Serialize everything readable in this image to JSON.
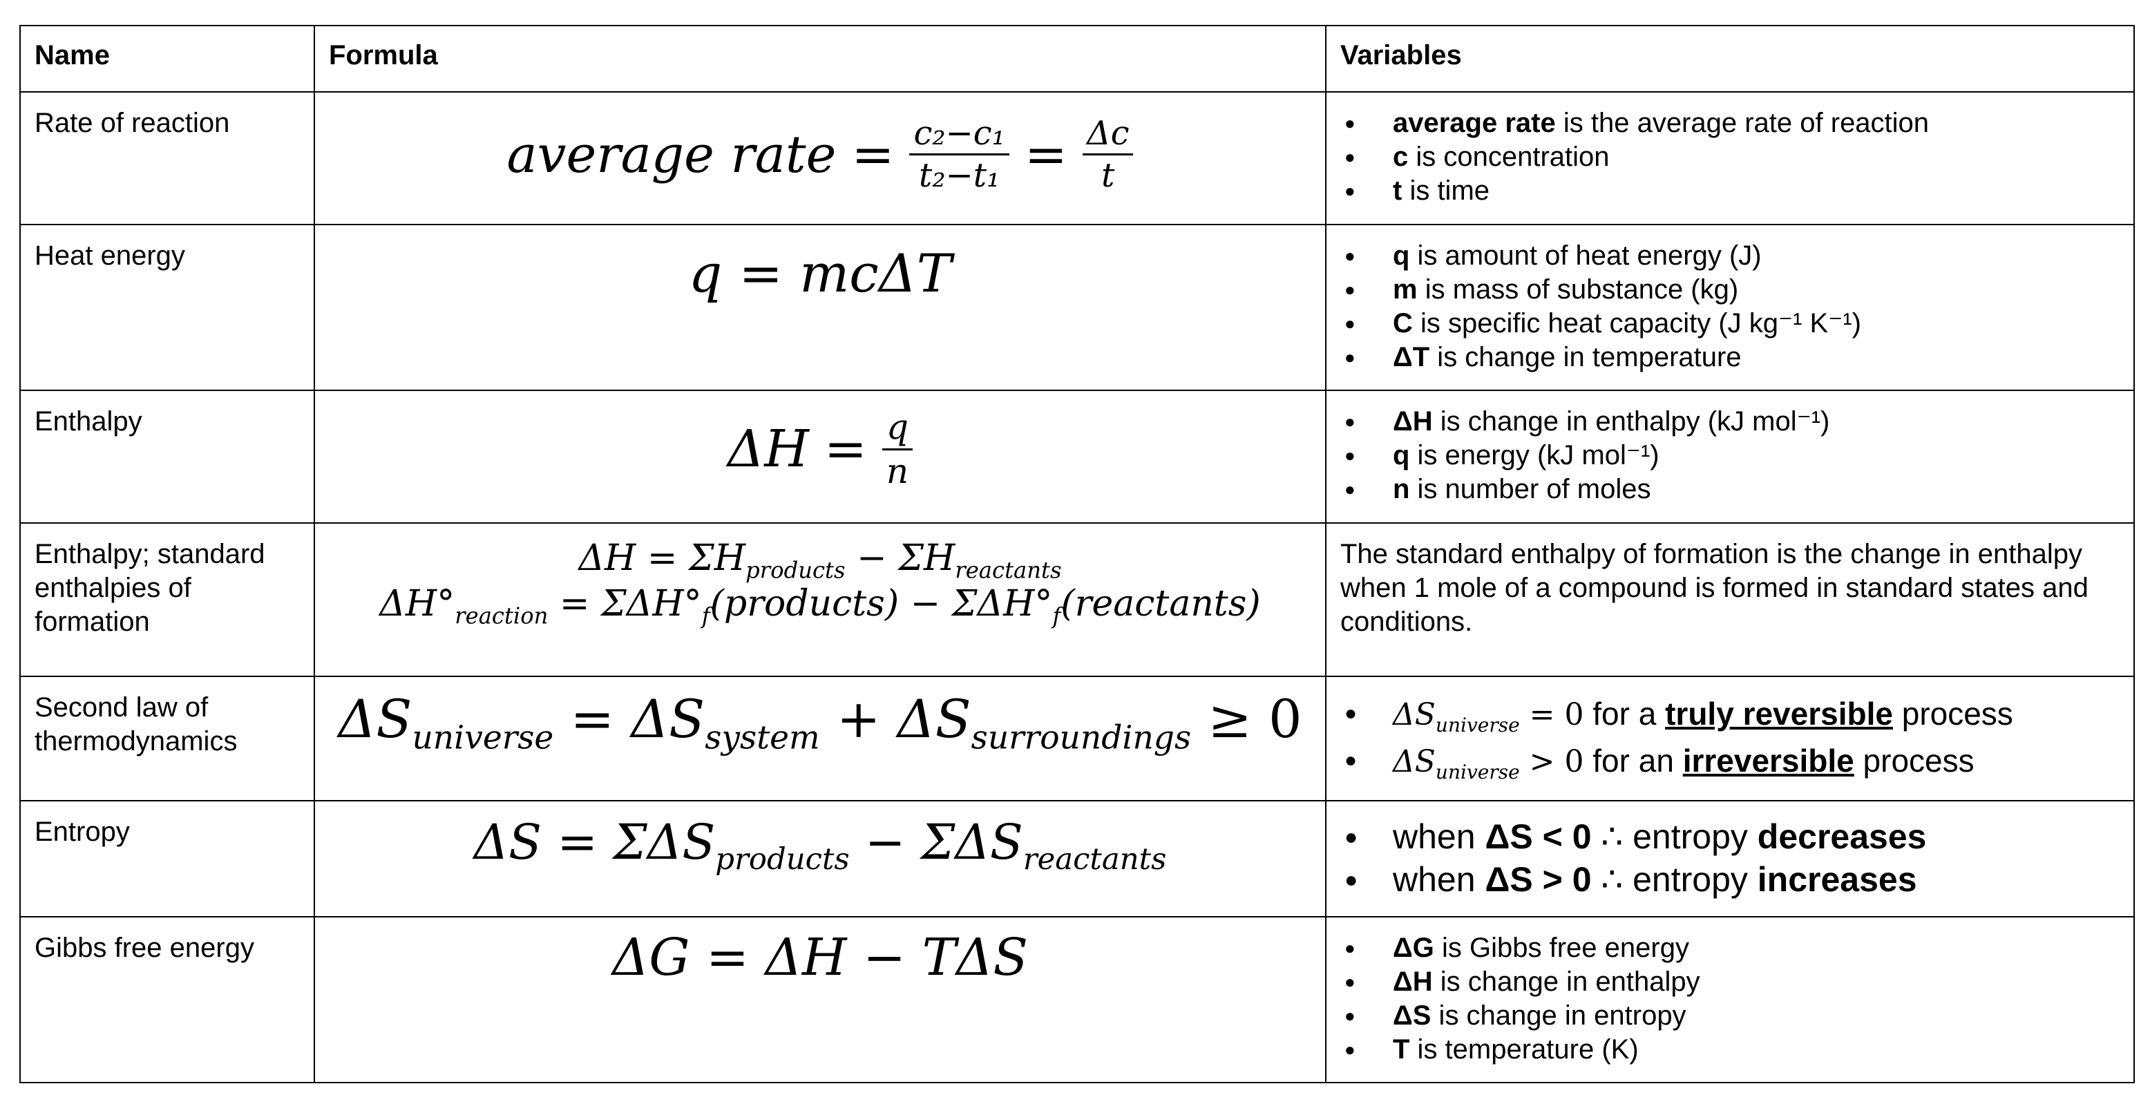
{
  "headers": {
    "name": "Name",
    "formula": "Formula",
    "variables": "Variables"
  },
  "rows": [
    {
      "name": "Rate of reaction",
      "formula": {
        "lhs": "average rate",
        "eq": "=",
        "num1": "c₂−c₁",
        "den1": "t₂−t₁",
        "eq2": "=",
        "num2": "Δc",
        "den2": "t"
      },
      "vars": [
        {
          "bold": "average rate",
          "text": " is the average rate of reaction"
        },
        {
          "bold": "c",
          "text": " is concentration"
        },
        {
          "bold": "t",
          "text": " is time"
        }
      ]
    },
    {
      "name": "Heat energy",
      "formula": {
        "text": "q = mcΔT"
      },
      "vars": [
        {
          "bold": "q",
          "text": " is amount of heat energy (J)"
        },
        {
          "bold": "m",
          "text": " is mass of substance (kg)"
        },
        {
          "bold": "C",
          "text": " is specific heat capacity (J kg⁻¹ K⁻¹)"
        },
        {
          "bold": "ΔT",
          "text": " is change in temperature"
        }
      ]
    },
    {
      "name": "Enthalpy",
      "formula": {
        "lhs": "ΔH",
        "eq": "=",
        "num": "q",
        "den": "n"
      },
      "vars": [
        {
          "bold": "ΔH",
          "text": " is change in enthalpy (kJ mol⁻¹)"
        },
        {
          "bold": "q",
          "text": " is energy (kJ mol⁻¹)"
        },
        {
          "bold": "n",
          "text": " is number of moles"
        }
      ]
    },
    {
      "name": "Enthalpy; standard enthalpies of formation",
      "formula": {
        "line1": {
          "a": "ΔH = ΣH",
          "a_sub": "products",
          "b": " − ΣH",
          "b_sub": "reactants"
        },
        "line2": {
          "a": "ΔH°",
          "a_sub": "reaction",
          "b": " = ΣΔH°",
          "b_sub": "f",
          "c": "(products) − ΣΔH°",
          "c_sub": "f",
          "d": "(reactants)"
        }
      },
      "description": "The standard enthalpy of formation is the change in enthalpy when 1 mole of a compound is formed in standard states and conditions."
    },
    {
      "name": "Second law of thermodynamics",
      "formula": {
        "a": "ΔS",
        "a_sub": "universe",
        "b": " = ΔS",
        "b_sub": "system",
        "c": " + ΔS",
        "c_sub": "surroundings",
        "d": " ≥ 0"
      },
      "vars": [
        {
          "math": "ΔS",
          "math_sub": "universe",
          "math_rel": " = 0",
          "pre": " for a ",
          "key": "truly reversible",
          "post": " process"
        },
        {
          "math": "ΔS",
          "math_sub": "universe",
          "math_rel": " > 0",
          "pre": " for an ",
          "key": "irreversible",
          "post": " process"
        }
      ]
    },
    {
      "name": "Entropy",
      "formula": {
        "a": "ΔS = ΣΔS",
        "a_sub": "products",
        "b": " − ΣΔS",
        "b_sub": "reactants"
      },
      "vars": [
        {
          "pre": "when ",
          "cond": "ΔS < 0",
          "mid": " ∴ entropy ",
          "result": "decreases"
        },
        {
          "pre": "when ",
          "cond": "ΔS > 0",
          "mid": " ∴ entropy ",
          "result": "increases"
        }
      ]
    },
    {
      "name": "Gibbs free energy",
      "formula": {
        "text": "ΔG = ΔH − TΔS"
      },
      "vars": [
        {
          "bold": "ΔG",
          "text": " is Gibbs free energy"
        },
        {
          "bold": "ΔH",
          "text": " is change in enthalpy"
        },
        {
          "bold": "ΔS",
          "text": " is change in entropy"
        },
        {
          "bold": "T",
          "text": " is temperature (K)"
        }
      ]
    }
  ]
}
